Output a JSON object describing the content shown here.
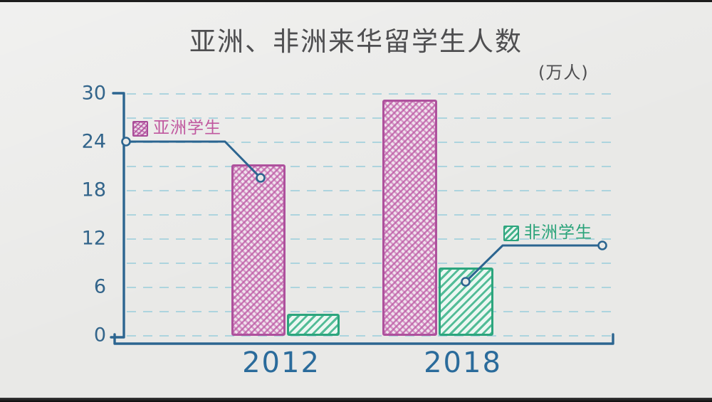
{
  "frame": {
    "title": "亚洲、非洲来华留学生人数",
    "unit_label": "(万人)"
  },
  "chart_data": {
    "type": "bar",
    "title": "亚洲、非洲来华留学生人数",
    "unit": "万人",
    "categories": [
      "2012",
      "2018"
    ],
    "series": [
      {
        "name": "亚洲学生",
        "color": "#b75ba4",
        "pattern": "crosshatch",
        "values": [
          21.3,
          29.3
        ]
      },
      {
        "name": "非洲学生",
        "color": "#2fa87e",
        "pattern": "diagonal-stripes",
        "values": [
          2.7,
          8.5
        ]
      }
    ],
    "ylim": [
      0,
      30
    ],
    "yticks": [
      0,
      6,
      12,
      18,
      24,
      30
    ],
    "grid_step": 3,
    "grid": "horizontal dashed ruled lines",
    "legend_position": "callout labels with leader lines pointing into bars",
    "style": "hand-drawn sketch on gray paper, letterboxed video frame"
  },
  "colors": {
    "paper": "#e9e9e7",
    "ink_blue": "#2c6590",
    "grid_blue": "#a2d0dc",
    "asia_pink": "#b75ba4",
    "africa_green": "#2fa87e",
    "title_gray": "#4e4e50",
    "letterbox_black": "#1d1d1d"
  }
}
